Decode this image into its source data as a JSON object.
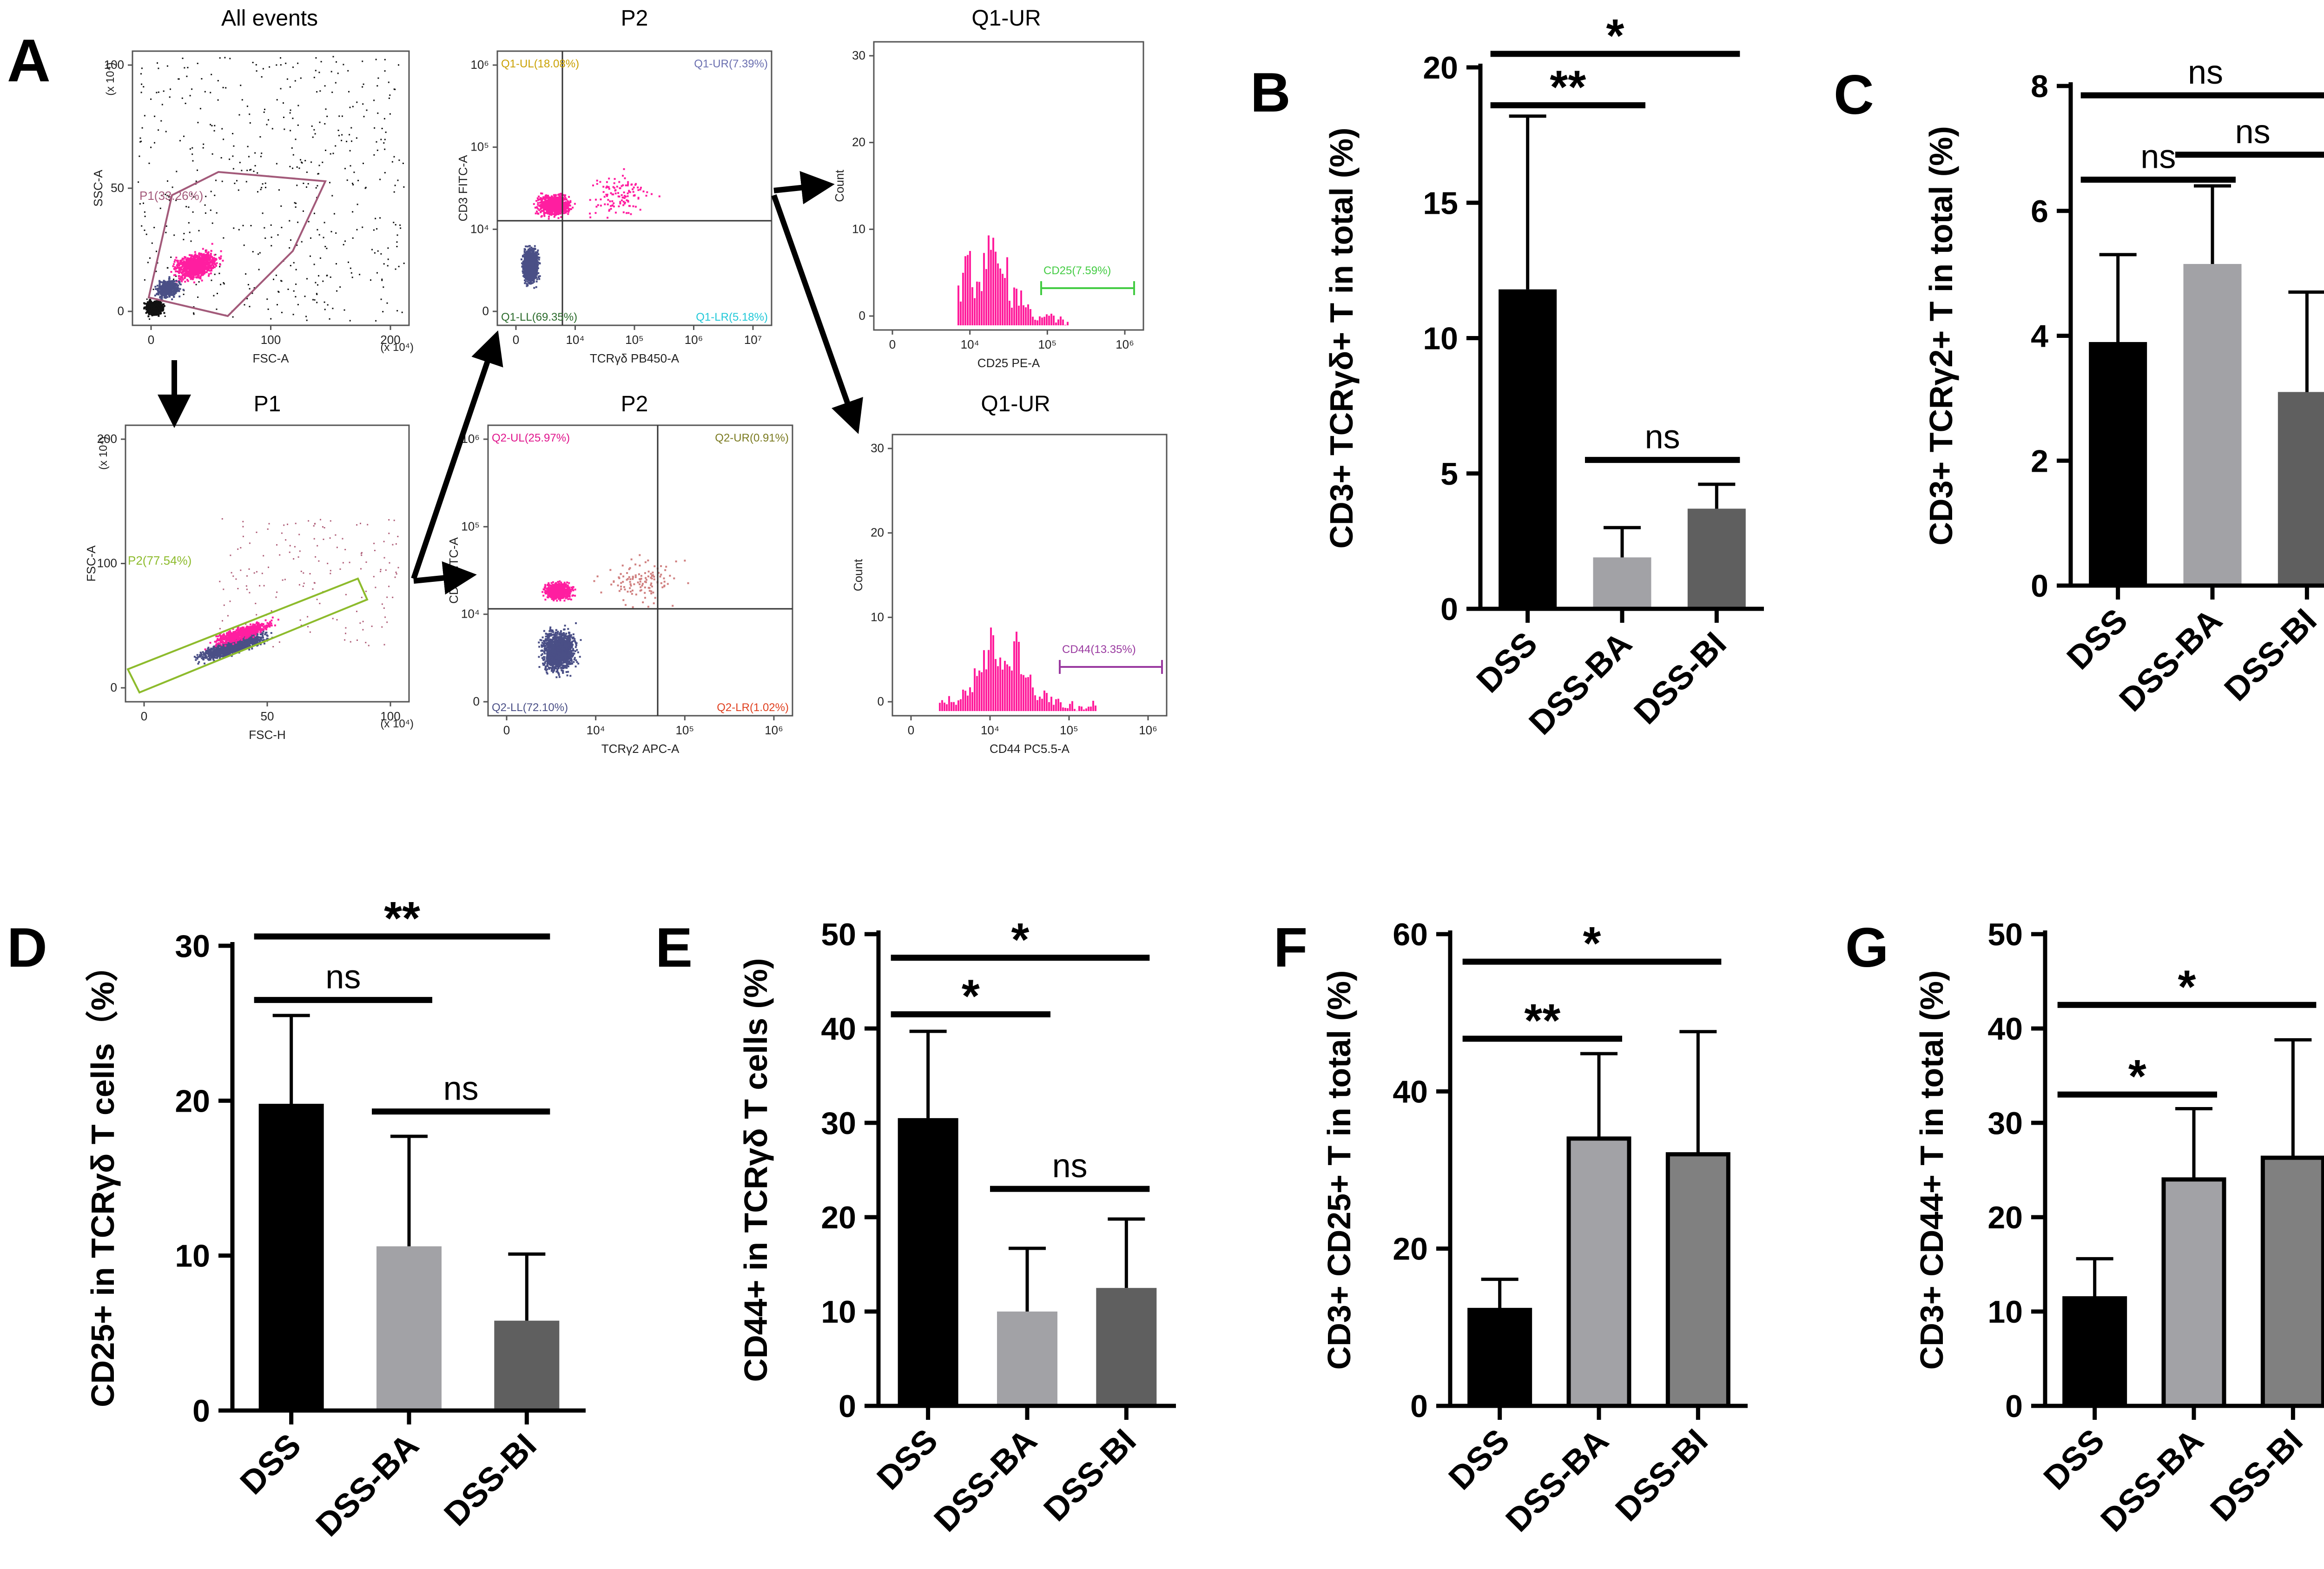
{
  "colors": {
    "dss": "#000000",
    "dss_ba": "#a2a2a6",
    "dss_bi": "#5f5f5f",
    "dss_bi_alt": "#808080",
    "dot_magenta": "#ff1ea0",
    "dot_navy": "#4a4f86",
    "dot_black": "#111111",
    "gate": "#a35a7a",
    "gate2": "#8dbb2c",
    "hist_magenta": "#ff1e9c"
  },
  "panel_a": {
    "letter": "A",
    "plots": [
      {
        "id": "all-events",
        "title": "All events",
        "xlabel": "FSC-A",
        "ylabel": "SSC-A",
        "xticks": [
          "0",
          "100",
          "200"
        ],
        "yticks": [
          "0",
          "50",
          "100"
        ],
        "xunit": "(x 10⁴)",
        "yunit": "(x 10⁴)",
        "gates": [
          {
            "label": "P1(33.26%)"
          }
        ]
      },
      {
        "id": "p1",
        "title": "P1",
        "xlabel": "FSC-H",
        "ylabel": "FSC-A",
        "xticks": [
          "0",
          "50",
          "100"
        ],
        "yticks": [
          "0",
          "100",
          "200"
        ],
        "xunit": "(x 10⁴)",
        "yunit": "(x 10⁴)",
        "gates": [
          {
            "label": "P2(77.54%)"
          }
        ]
      },
      {
        "id": "p2-a",
        "title": "P2",
        "xlabel": "TCRγδ PB450-A",
        "ylabel": "CD3 FITC-A",
        "xticks": [
          "0",
          "10⁴",
          "10⁵",
          "10⁶",
          "10⁷"
        ],
        "yticks": [
          "0",
          "10⁴",
          "10⁵",
          "10⁶"
        ],
        "quadrants": [
          "Q1-UL(18.08%)",
          "Q1-UR(7.39%)",
          "Q1-LL(69.35%)",
          "Q1-LR(5.18%)"
        ]
      },
      {
        "id": "p2-b",
        "title": "P2",
        "xlabel": "TCRγ2 APC-A",
        "ylabel": "CD3 FITC-A",
        "xticks": [
          "0",
          "10⁴",
          "10⁵",
          "10⁶"
        ],
        "yticks": [
          "0",
          "10⁴",
          "10⁵",
          "10⁶"
        ],
        "quadrants": [
          "Q2-UL(25.97%)",
          "Q2-UR(0.91%)",
          "Q2-LL(72.10%)",
          "Q2-LR(1.02%)"
        ]
      },
      {
        "id": "q1-ur-a",
        "title": "Q1-UR",
        "xlabel": "CD25 PE-A",
        "ylabel": "Count",
        "xticks": [
          "0",
          "10⁴",
          "10⁵",
          "10⁶"
        ],
        "yticks": [
          "0",
          "10",
          "20",
          "30"
        ],
        "gates": [
          {
            "label": "CD25(7.59%)"
          }
        ]
      },
      {
        "id": "q1-ur-b",
        "title": "Q1-UR",
        "xlabel": "CD44 PC5.5-A",
        "ylabel": "Count",
        "xticks": [
          "0",
          "10⁴",
          "10⁵",
          "10⁶"
        ],
        "yticks": [
          "0",
          "10",
          "20",
          "30"
        ],
        "gates": [
          {
            "label": "CD44(13.35%)"
          }
        ]
      }
    ]
  },
  "chart_data": [
    {
      "panel": "B",
      "type": "bar",
      "categories": [
        "DSS",
        "DSS-BA",
        "DSS-BI"
      ],
      "values": [
        11.8,
        1.9,
        3.7
      ],
      "errors": [
        6.4,
        1.1,
        0.9
      ],
      "ylabel": "CD3+ TCRγδ+ T in total (%)",
      "ylim": [
        0,
        20
      ],
      "yticks": [
        0,
        5,
        10,
        15,
        20
      ],
      "significance": [
        {
          "from": 0,
          "to": 2,
          "label": "*",
          "y": 20.5
        },
        {
          "from": 0,
          "to": 1,
          "label": "**",
          "y": 18.6
        },
        {
          "from": 1,
          "to": 2,
          "label": "ns",
          "y": 5.5
        }
      ]
    },
    {
      "panel": "C",
      "type": "bar",
      "categories": [
        "DSS",
        "DSS-BA",
        "DSS-BI"
      ],
      "values": [
        3.9,
        5.15,
        3.1
      ],
      "errors": [
        1.4,
        1.25,
        1.6
      ],
      "ylabel": "CD3+ TCRγ2+ T in total (%)",
      "ylim": [
        0,
        8
      ],
      "yticks": [
        0,
        2,
        4,
        6,
        8
      ],
      "significance": [
        {
          "from": 0,
          "to": 2,
          "label": "ns",
          "y": 7.85
        },
        {
          "from": 0,
          "to": 1,
          "label": "ns",
          "y": 6.5
        },
        {
          "from": 1,
          "to": 2,
          "label": "ns",
          "y": 6.9
        }
      ]
    },
    {
      "panel": "D",
      "type": "bar",
      "categories": [
        "DSS",
        "DSS-BA",
        "DSS-BI"
      ],
      "values": [
        19.8,
        10.6,
        5.8
      ],
      "errors": [
        5.7,
        7.1,
        4.3
      ],
      "ylabel": "CD25+ in TCRγδ T cells（%）",
      "ylim": [
        0,
        30
      ],
      "yticks": [
        0,
        10,
        20,
        30
      ],
      "significance": [
        {
          "from": 0,
          "to": 2,
          "label": "**",
          "y": 30.6
        },
        {
          "from": 0,
          "to": 1,
          "label": "ns",
          "y": 26.5
        },
        {
          "from": 1,
          "to": 2,
          "label": "ns",
          "y": 19.3
        }
      ]
    },
    {
      "panel": "E",
      "type": "bar",
      "categories": [
        "DSS",
        "DSS-BA",
        "DSS-BI"
      ],
      "values": [
        30.5,
        10.0,
        12.5
      ],
      "errors": [
        9.2,
        6.7,
        7.3
      ],
      "ylabel": "CD44+ in TCRγδ T cells (%)",
      "ylim": [
        0,
        50
      ],
      "yticks": [
        0,
        10,
        20,
        30,
        40,
        50
      ],
      "significance": [
        {
          "from": 0,
          "to": 2,
          "label": "*",
          "y": 47.5
        },
        {
          "from": 0,
          "to": 1,
          "label": "*",
          "y": 41.5
        },
        {
          "from": 1,
          "to": 2,
          "label": "ns",
          "y": 23.0
        }
      ]
    },
    {
      "panel": "F",
      "type": "bar",
      "categories": [
        "DSS",
        "DSS-BA",
        "DSS-BI"
      ],
      "values": [
        12.2,
        34.0,
        32.0
      ],
      "errors": [
        3.9,
        10.8,
        15.6
      ],
      "ylabel": "CD3+ CD25+ T in total (%)",
      "ylim": [
        0,
        60
      ],
      "yticks": [
        0,
        20,
        40,
        60
      ],
      "significance": [
        {
          "from": 0,
          "to": 2,
          "label": "*",
          "y": 56.5
        },
        {
          "from": 0,
          "to": 1,
          "label": "**",
          "y": 46.7
        }
      ]
    },
    {
      "panel": "G",
      "type": "bar",
      "categories": [
        "DSS",
        "DSS-BA",
        "DSS-BI"
      ],
      "values": [
        11.4,
        24.0,
        26.3
      ],
      "errors": [
        4.2,
        7.5,
        12.5
      ],
      "ylabel": "CD3+ CD44+ T in total (%)",
      "ylim": [
        0,
        50
      ],
      "yticks": [
        0,
        10,
        20,
        30,
        40,
        50
      ],
      "significance": [
        {
          "from": 0,
          "to": 2,
          "label": "*",
          "y": 42.5
        },
        {
          "from": 0,
          "to": 1,
          "label": "*",
          "y": 33.0
        }
      ]
    }
  ]
}
